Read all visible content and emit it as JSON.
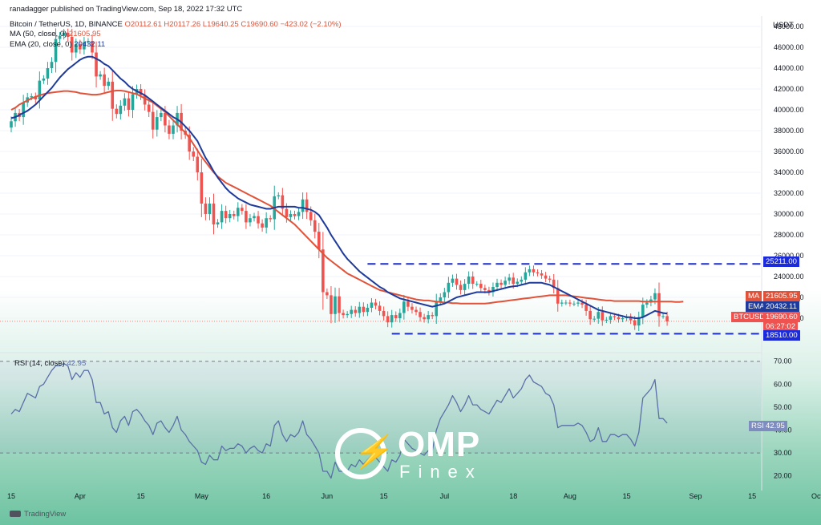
{
  "header": {
    "published": "ranadagger published on TradingView.com, Sep 18, 2022 17:32 UTC",
    "symbol": "Bitcoin / TetherUS, 1D, BINANCE",
    "ohlc": "O20112.61  H20117.26  L19640.25  C19690.60  −423.02 (−2.10%)",
    "ma_label": "MA (50, close, 0)",
    "ma_value": "21605.95",
    "ema_label": "EMA (20, close, 0)",
    "ema_value": "20432.11",
    "rsi_label": "RSI (14, close)",
    "rsi_value": "42.95",
    "currency": "USDT",
    "tradingview": "TradingView"
  },
  "tags": {
    "resistance": "25211.00",
    "ma": "MA",
    "ma_value": "21605.95",
    "ema": "EMA",
    "ema_value": "20432.11",
    "symbol": "BTCUSDT",
    "price": "19690.60",
    "countdown": "06:27:02",
    "support": "18510.00",
    "rsi": "RSI",
    "rsi_value": "42.95"
  },
  "watermark": {
    "brand": "OMP",
    "sub": "Finex"
  },
  "colors": {
    "up": "#26a69a",
    "down": "#ef5350",
    "ma": "#e0533a",
    "ema": "#1e3a9a",
    "rsi": "#5a6fa8",
    "level": "#1c2bd9",
    "price_tag": "#ef5350"
  },
  "chart_data": [
    {
      "type": "candlestick",
      "title": "Bitcoin / TetherUS, 1D, BINANCE",
      "ylim": [
        17000,
        49000
      ],
      "y_ticks": [
        "48000.00",
        "46000.00",
        "44000.00",
        "42000.00",
        "40000.00",
        "38000.00",
        "36000.00",
        "34000.00",
        "32000.00",
        "30000.00",
        "28000.00",
        "26000.00",
        "24000.00",
        "22000.00",
        "20000.00"
      ],
      "x_ticks": [
        "15",
        "Apr",
        "15",
        "May",
        "16",
        "Jun",
        "15",
        "Jul",
        "18",
        "Aug",
        "15",
        "Sep",
        "15",
        "Oct"
      ],
      "x_tick_day_index": [
        0,
        17,
        32,
        47,
        63,
        78,
        92,
        107,
        124,
        138,
        152,
        169,
        183,
        199
      ],
      "start": "2022-03-15",
      "close": [
        38900,
        39700,
        39300,
        40700,
        41200,
        41300,
        41000,
        42800,
        43000,
        44000,
        44600,
        46800,
        47100,
        47400,
        47000,
        45500,
        46300,
        45800,
        46500,
        46600,
        45500,
        43200,
        43400,
        42300,
        42700,
        40100,
        39600,
        40400,
        41100,
        40000,
        41500,
        42000,
        41400,
        40500,
        39800,
        38100,
        39300,
        39700,
        38500,
        37700,
        38500,
        39700,
        38000,
        37600,
        36000,
        35500,
        34000,
        31000,
        30000,
        31000,
        29000,
        29200,
        30300,
        29600,
        30000,
        29800,
        30600,
        30300,
        29200,
        29600,
        29800,
        29100,
        28700,
        29600,
        29500,
        31700,
        31800,
        30500,
        29700,
        30000,
        29800,
        30200,
        31400,
        30200,
        29400,
        28300,
        26600,
        22500,
        22200,
        20400,
        22100,
        20500,
        20300,
        20400,
        20800,
        20500,
        21100,
        20600,
        21000,
        21500,
        21200,
        20700,
        20200,
        19600,
        20300,
        20000,
        20500,
        21600,
        21100,
        20800,
        20600,
        20100,
        19900,
        20300,
        20200,
        21600,
        22000,
        22500,
        23400,
        23800,
        23200,
        22700,
        23300,
        24000,
        23300,
        23300,
        22900,
        22700,
        22500,
        23000,
        23400,
        23200,
        23600,
        23900,
        23300,
        23500,
        23700,
        24400,
        24700,
        24400,
        24300,
        24100,
        23800,
        23700,
        22900,
        21400,
        21500,
        21500,
        21400,
        21400,
        21500,
        21300,
        20700,
        19900,
        19950,
        20600,
        19800,
        19850,
        20200,
        20100,
        19900,
        20000,
        20100,
        19800,
        19300,
        20100,
        21300,
        21500,
        21800,
        22400,
        20200,
        20200,
        19700
      ],
      "ma50": [
        40000,
        40200,
        40500,
        40700,
        40900,
        41100,
        41250,
        41400,
        41500,
        41600,
        41650,
        41700,
        41750,
        41800,
        41800,
        41750,
        41700,
        41600,
        41550,
        41500,
        41450,
        41450,
        41500,
        41600,
        41700,
        41800,
        41850,
        41850,
        41800,
        41700,
        41600,
        41500,
        41300,
        41100,
        40900,
        40700,
        40400,
        40100,
        39800,
        39400,
        39000,
        38600,
        38200,
        37800,
        37300,
        36700,
        36100,
        35500,
        35000,
        34500,
        34000,
        33600,
        33300,
        33000,
        32800,
        32600,
        32400,
        32200,
        32000,
        31800,
        31600,
        31400,
        31200,
        31000,
        30800,
        30500,
        30200,
        29900,
        29600,
        29300,
        29000,
        28600,
        28200,
        27800,
        27400,
        27000,
        26600,
        26200,
        25800,
        25500,
        25200,
        24900,
        24600,
        24300,
        24100,
        23900,
        23700,
        23500,
        23300,
        23100,
        22900,
        22700,
        22600,
        22500,
        22400,
        22300,
        22200,
        22100,
        22000,
        21900,
        21800,
        21750,
        21700,
        21700,
        21650,
        21600,
        21550,
        21500,
        21500,
        21450,
        21450,
        21400,
        21400,
        21400,
        21400,
        21400,
        21400,
        21400,
        21450,
        21500,
        21550,
        21600,
        21650,
        21700,
        21750,
        21800,
        21850,
        21900,
        21950,
        22000,
        22050,
        22100,
        22150,
        22200,
        22200,
        22200,
        22200,
        22200,
        22150,
        22100,
        22050,
        22000,
        21950,
        21900,
        21850,
        21800,
        21750,
        21700,
        21700,
        21650,
        21650,
        21650,
        21650,
        21650,
        21650,
        21650,
        21600,
        21600,
        21600,
        21600,
        21600,
        21600,
        21600,
        21600,
        21550,
        21550,
        21600
      ],
      "ema20": [
        39200,
        39300,
        39500,
        39700,
        39900,
        40200,
        40500,
        40900,
        41300,
        41700,
        42100,
        42600,
        43100,
        43500,
        43900,
        44200,
        44500,
        44800,
        45000,
        45100,
        45100,
        44900,
        44700,
        44400,
        44200,
        43800,
        43400,
        43000,
        42700,
        42300,
        42000,
        41800,
        41600,
        41400,
        41100,
        40800,
        40500,
        40200,
        39900,
        39600,
        39300,
        39100,
        38800,
        38400,
        38000,
        37500,
        37000,
        36200,
        35400,
        34800,
        34100,
        33500,
        33000,
        32500,
        32100,
        31800,
        31500,
        31300,
        31100,
        30900,
        30800,
        30700,
        30600,
        30500,
        30500,
        30600,
        30700,
        30700,
        30700,
        30700,
        30700,
        30600,
        30600,
        30500,
        30400,
        30200,
        29900,
        29300,
        28700,
        28000,
        27400,
        26800,
        26200,
        25700,
        25300,
        24900,
        24500,
        24200,
        23900,
        23600,
        23300,
        23000,
        22800,
        22500,
        22300,
        22100,
        21900,
        21800,
        21700,
        21600,
        21500,
        21400,
        21300,
        21200,
        21100,
        21200,
        21300,
        21400,
        21600,
        21800,
        22000,
        22100,
        22200,
        22300,
        22400,
        22500,
        22500,
        22500,
        22500,
        22600,
        22700,
        22800,
        22900,
        23000,
        23050,
        23100,
        23200,
        23300,
        23400,
        23400,
        23400,
        23400,
        23300,
        23200,
        23000,
        22800,
        22600,
        22400,
        22200,
        22000,
        21800,
        21600,
        21400,
        21200,
        21000,
        20800,
        20700,
        20600,
        20500,
        20400,
        20300,
        20200,
        20100,
        20100,
        20000,
        20000,
        20100,
        20300,
        20500,
        20700,
        20600,
        20500,
        20450
      ]
    },
    {
      "type": "line",
      "title": "RSI (14, close)",
      "ylim": [
        15,
        72
      ],
      "y_ticks": [
        "70.00",
        "60.00",
        "50.00",
        "40.00",
        "30.00",
        "20.00"
      ],
      "bands": [
        30,
        70
      ],
      "series": [
        {
          "name": "RSI (14, close)",
          "values": [
            47,
            49,
            48,
            52,
            56,
            55,
            54,
            59,
            60,
            63,
            66,
            68,
            68,
            69,
            68,
            62,
            65,
            63,
            66,
            66,
            62,
            52,
            52,
            47,
            48,
            41,
            39,
            44,
            46,
            42,
            48,
            49,
            47,
            44,
            42,
            38,
            43,
            44,
            41,
            39,
            42,
            46,
            40,
            38,
            35,
            33,
            31,
            26,
            25,
            29,
            27,
            27,
            33,
            31,
            32,
            32,
            34,
            33,
            30,
            32,
            33,
            31,
            30,
            34,
            33,
            42,
            44,
            38,
            35,
            38,
            37,
            39,
            44,
            38,
            36,
            33,
            30,
            22,
            22,
            19,
            26,
            22,
            22,
            22,
            25,
            24,
            27,
            25,
            27,
            29,
            28,
            26,
            24,
            22,
            27,
            26,
            29,
            36,
            34,
            32,
            31,
            30,
            29,
            31,
            31,
            40,
            45,
            48,
            51,
            55,
            52,
            48,
            51,
            55,
            51,
            51,
            49,
            48,
            47,
            50,
            53,
            52,
            55,
            58,
            54,
            56,
            58,
            62,
            64,
            61,
            60,
            59,
            56,
            55,
            51,
            41,
            42,
            42,
            42,
            42,
            43,
            42,
            39,
            35,
            36,
            41,
            35,
            35,
            38,
            38,
            37,
            38,
            38,
            36,
            33,
            39,
            54,
            56,
            58,
            62,
            45,
            45,
            43
          ]
        }
      ]
    }
  ]
}
